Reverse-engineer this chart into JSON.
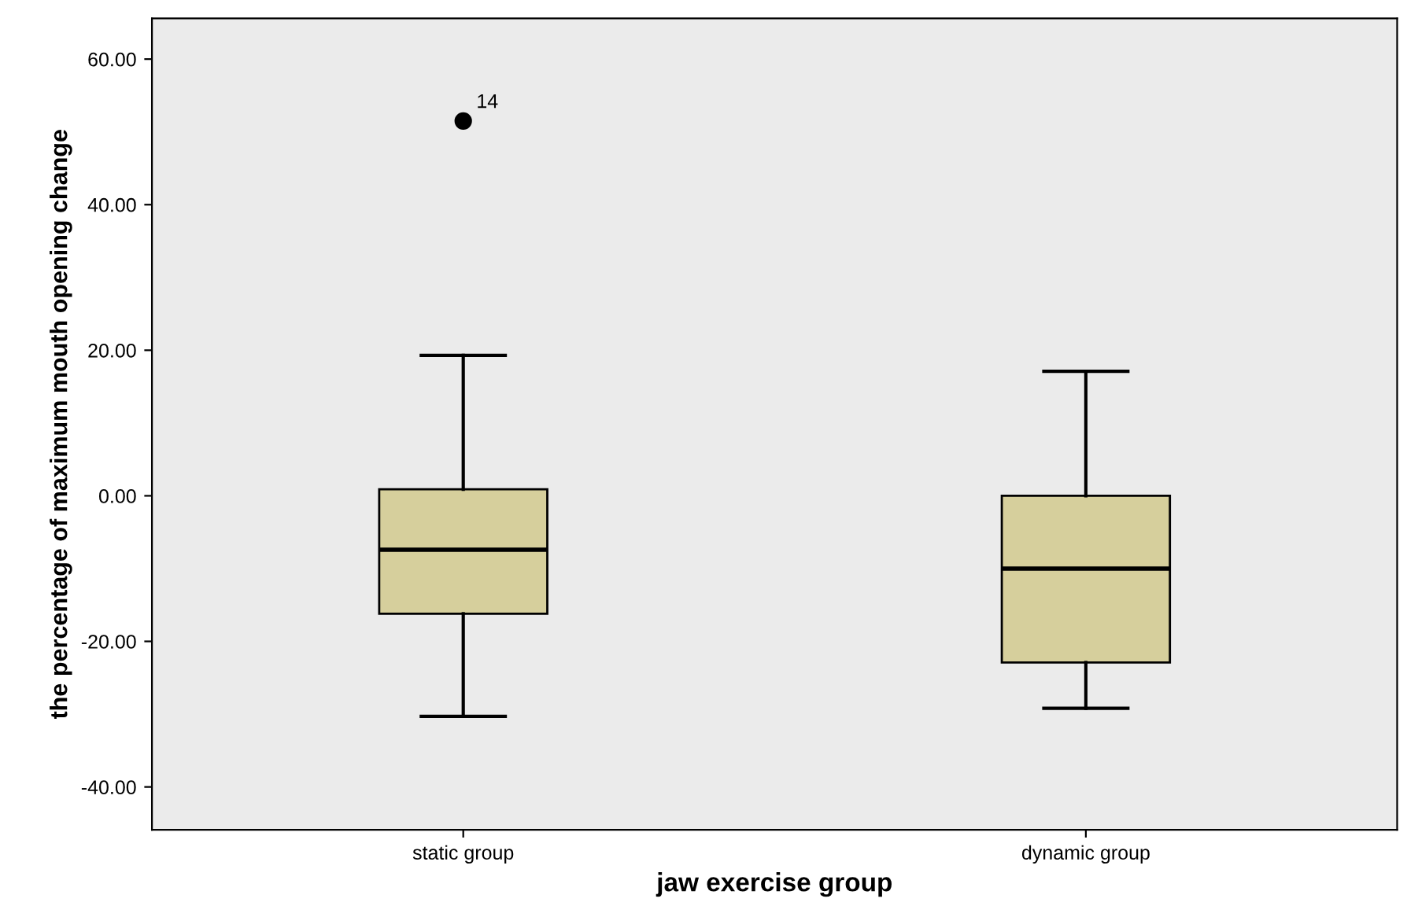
{
  "chart_data": {
    "type": "box",
    "xlabel": "jaw exercise group",
    "ylabel": "the percentage of maximum mouth opening change",
    "categories": [
      "static group",
      "dynamic group"
    ],
    "boxes": [
      {
        "low": -30.3,
        "q1": -16.2,
        "median": -7.4,
        "q3": 0.9,
        "high": 19.3,
        "outliers": [
          51.5
        ]
      },
      {
        "low": -29.2,
        "q1": -22.9,
        "median": -10.0,
        "q3": 0.0,
        "high": 17.1
      }
    ],
    "color": "#d6cf9c",
    "ylim": [
      -45.9,
      65.6
    ],
    "yticks": [
      {
        "value": -40,
        "label": "-40.00"
      },
      {
        "value": -20,
        "label": "-20.00"
      },
      {
        "value": 0,
        "label": "0.00"
      },
      {
        "value": 20,
        "label": "20.00"
      },
      {
        "value": 40,
        "label": "40.00"
      },
      {
        "value": 60,
        "label": "60.00"
      }
    ],
    "annotations": [
      "14"
    ],
    "grid": false,
    "legend": false
  }
}
